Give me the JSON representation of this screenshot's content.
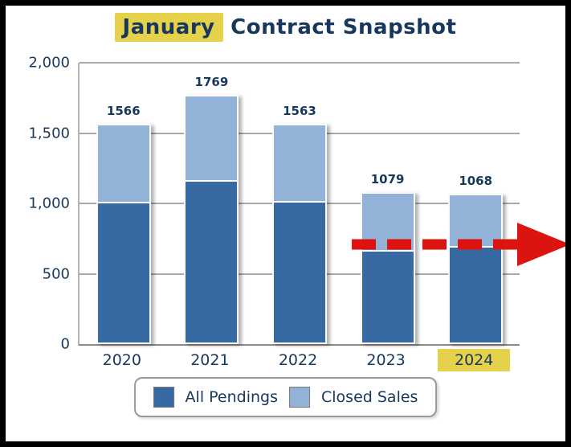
{
  "title": {
    "highlight": "January",
    "rest": " Contract Snapshot"
  },
  "colors": {
    "text": "#17375d",
    "highlight_yellow": "#e6d24a",
    "grid": "#a8a8a8",
    "arrow_red": "#dc1410"
  },
  "chart_data": {
    "type": "bar",
    "subtype": "stacked-column",
    "title": "January Contract Snapshot",
    "categories": [
      "2020",
      "2021",
      "2022",
      "2023",
      "2024"
    ],
    "series": [
      {
        "name": "All Pendings",
        "color": "#376aa3",
        "values": [
          1000,
          1155,
          1005,
          655,
          685
        ]
      },
      {
        "name": "Closed Sales",
        "color": "#93b2d7",
        "values": [
          566,
          614,
          558,
          424,
          383
        ]
      }
    ],
    "totals": [
      "1566",
      "1769",
      "1563",
      "1079",
      "1068"
    ],
    "y_ticks": [
      "2,000",
      "1,500",
      "1,000",
      "500",
      "0"
    ],
    "y_tick_values": [
      2000,
      1500,
      1000,
      500,
      0
    ],
    "ylim": [
      0,
      2000
    ],
    "grid": "horizontal",
    "legend_position": "bottom",
    "highlighted_category": "2024",
    "annotations": [
      {
        "type": "dashed-arrow-right",
        "y_value": 710,
        "color": "#dc1410",
        "note": "red dashed arrow pointing right across 2023-2024 bars"
      }
    ]
  }
}
